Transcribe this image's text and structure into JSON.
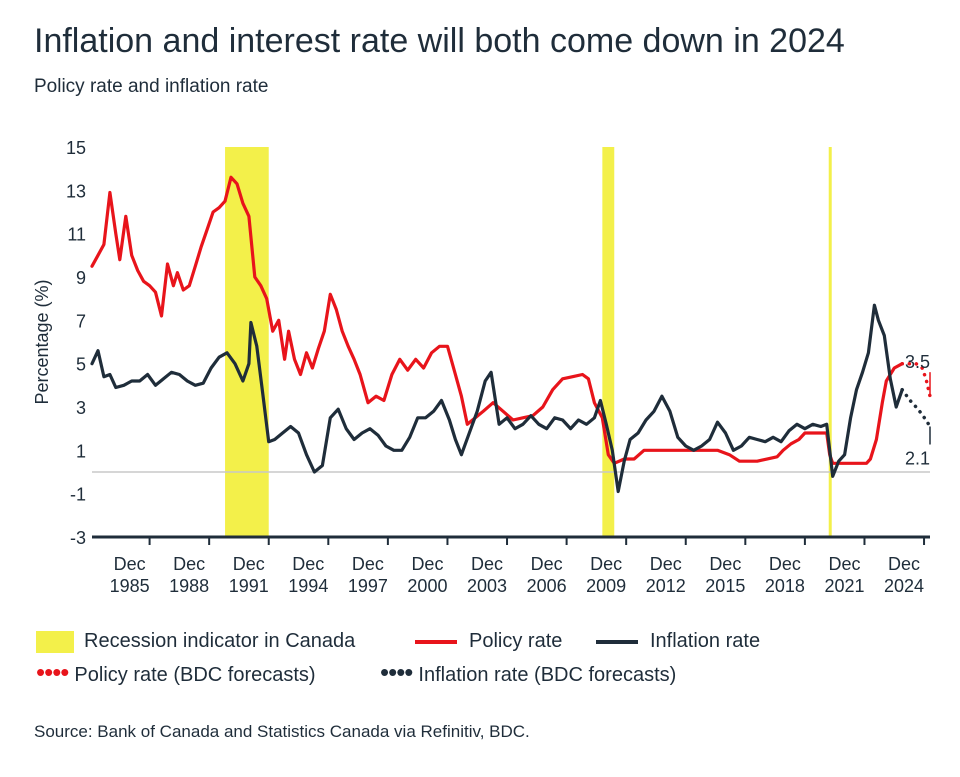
{
  "title": "Inflation and interest rate will both come down in 2024",
  "subtitle": "Policy rate and inflation rate",
  "source": "Source: Bank of Canada and Statistics Canada via Refinitiv, BDC.",
  "colors": {
    "policy": "#e8141b",
    "inflation": "#1f2d3a",
    "recession": "#f3f04a",
    "zero": "#c8c8c8"
  },
  "legend": {
    "recession": "Recession indicator in Canada",
    "policy": "Policy rate",
    "inflation": "Inflation rate",
    "policy_forecast": "Policy rate (BDC forecasts)",
    "inflation_forecast": "Inflation rate (BDC forecasts)"
  },
  "chart_data": {
    "type": "line",
    "ylabel": "Percentage (%)",
    "ylim": [
      -3,
      15
    ],
    "yticks": [
      -3,
      -1,
      1,
      3,
      5,
      7,
      9,
      11,
      13,
      15
    ],
    "xlim": [
      1983.0,
      2025.2
    ],
    "xticks": [
      {
        "line1": "Dec",
        "line2": "1985",
        "x": 1985.9
      },
      {
        "line1": "Dec",
        "line2": "1988",
        "x": 1988.9
      },
      {
        "line1": "Dec",
        "line2": "1991",
        "x": 1991.9
      },
      {
        "line1": "Dec",
        "line2": "1994",
        "x": 1994.9
      },
      {
        "line1": "Dec",
        "line2": "1997",
        "x": 1997.9
      },
      {
        "line1": "Dec",
        "line2": "2000",
        "x": 2000.9
      },
      {
        "line1": "Dec",
        "line2": "2003",
        "x": 2003.9
      },
      {
        "line1": "Dec",
        "line2": "2006",
        "x": 2006.9
      },
      {
        "line1": "Dec",
        "line2": "2009",
        "x": 2009.9
      },
      {
        "line1": "Dec",
        "line2": "2012",
        "x": 2012.9
      },
      {
        "line1": "Dec",
        "line2": "2015",
        "x": 2015.9
      },
      {
        "line1": "Dec",
        "line2": "2018",
        "x": 2018.9
      },
      {
        "line1": "Dec",
        "line2": "2021",
        "x": 2021.9
      },
      {
        "line1": "Dec",
        "line2": "2024",
        "x": 2024.9
      }
    ],
    "recessions": [
      [
        1989.7,
        1991.9
      ],
      [
        2008.7,
        2009.3
      ],
      [
        2020.1,
        2020.25
      ]
    ],
    "series": [
      {
        "name": "Policy rate",
        "x": [
          1983.0,
          1983.3,
          1983.6,
          1983.9,
          1984.2,
          1984.4,
          1984.7,
          1985.0,
          1985.3,
          1985.6,
          1985.9,
          1986.2,
          1986.5,
          1986.8,
          1987.1,
          1987.3,
          1987.6,
          1987.9,
          1988.2,
          1988.5,
          1988.8,
          1989.1,
          1989.4,
          1989.7,
          1990.0,
          1990.3,
          1990.6,
          1990.9,
          1991.2,
          1991.5,
          1991.8,
          1992.1,
          1992.4,
          1992.7,
          1992.9,
          1993.2,
          1993.5,
          1993.8,
          1994.1,
          1994.4,
          1994.7,
          1995.0,
          1995.3,
          1995.6,
          1995.9,
          1996.2,
          1996.5,
          1996.9,
          1997.3,
          1997.7,
          1998.1,
          1998.5,
          1998.9,
          1999.3,
          1999.7,
          2000.1,
          2000.5,
          2000.9,
          2001.3,
          2001.6,
          2001.9,
          2002.3,
          2002.7,
          2003.2,
          2003.7,
          2004.2,
          2004.7,
          2005.2,
          2005.7,
          2006.2,
          2006.7,
          2007.2,
          2007.7,
          2008.0,
          2008.3,
          2008.7,
          2009.0,
          2009.3,
          2009.8,
          2010.3,
          2010.8,
          2011.5,
          2012.5,
          2013.5,
          2014.5,
          2015.1,
          2015.6,
          2016.5,
          2017.5,
          2017.8,
          2018.2,
          2018.6,
          2018.9,
          2019.5,
          2020.0,
          2020.15,
          2020.3,
          2021.0,
          2021.5,
          2022.0,
          2022.2,
          2022.5,
          2022.8,
          2023.0,
          2023.4,
          2023.8
        ],
        "y": [
          9.5,
          10.0,
          10.5,
          12.9,
          11.0,
          9.8,
          11.8,
          10.0,
          9.3,
          8.8,
          8.6,
          8.3,
          7.2,
          9.6,
          8.6,
          9.2,
          8.4,
          8.6,
          9.5,
          10.4,
          11.2,
          12.0,
          12.2,
          12.5,
          13.6,
          13.3,
          12.4,
          11.8,
          9.0,
          8.6,
          8.0,
          6.5,
          7.0,
          5.2,
          6.5,
          5.2,
          4.5,
          5.5,
          4.8,
          5.7,
          6.5,
          8.2,
          7.5,
          6.5,
          5.8,
          5.2,
          4.5,
          3.2,
          3.5,
          3.3,
          4.5,
          5.2,
          4.7,
          5.2,
          4.8,
          5.5,
          5.8,
          5.8,
          4.5,
          3.5,
          2.2,
          2.5,
          2.8,
          3.2,
          2.8,
          2.4,
          2.5,
          2.6,
          3.0,
          3.8,
          4.3,
          4.4,
          4.5,
          4.3,
          3.2,
          2.5,
          0.8,
          0.4,
          0.6,
          0.6,
          1.0,
          1.0,
          1.0,
          1.0,
          1.0,
          0.8,
          0.5,
          0.5,
          0.7,
          1.0,
          1.3,
          1.5,
          1.8,
          1.8,
          1.8,
          0.8,
          0.4,
          0.4,
          0.4,
          0.4,
          0.6,
          1.5,
          3.2,
          4.2,
          4.8,
          5.0
        ]
      },
      {
        "name": "Policy rate (BDC forecasts)",
        "x": [
          2023.8,
          2024.5,
          2024.8,
          2025.0,
          2025.2
        ],
        "y": [
          5.0,
          5.0,
          4.8,
          4.3,
          3.5
        ]
      },
      {
        "name": "Inflation rate",
        "x": [
          1983.0,
          1983.3,
          1983.6,
          1983.9,
          1984.2,
          1984.6,
          1985.0,
          1985.4,
          1985.8,
          1986.2,
          1986.6,
          1987.0,
          1987.4,
          1987.8,
          1988.2,
          1988.6,
          1989.0,
          1989.4,
          1989.8,
          1990.2,
          1990.6,
          1990.9,
          1991.0,
          1991.3,
          1991.6,
          1991.9,
          1992.2,
          1992.6,
          1993.0,
          1993.4,
          1993.8,
          1994.2,
          1994.6,
          1995.0,
          1995.4,
          1995.8,
          1996.2,
          1996.6,
          1997.0,
          1997.4,
          1997.8,
          1998.2,
          1998.6,
          1999.0,
          1999.4,
          1999.8,
          2000.2,
          2000.6,
          2001.0,
          2001.3,
          2001.6,
          2002.0,
          2002.4,
          2002.8,
          2003.1,
          2003.5,
          2003.9,
          2004.3,
          2004.7,
          2005.1,
          2005.5,
          2005.9,
          2006.3,
          2006.7,
          2007.1,
          2007.5,
          2007.9,
          2008.3,
          2008.6,
          2008.9,
          2009.2,
          2009.5,
          2009.8,
          2010.1,
          2010.5,
          2010.9,
          2011.3,
          2011.7,
          2012.1,
          2012.5,
          2012.9,
          2013.3,
          2013.7,
          2014.1,
          2014.5,
          2014.9,
          2015.3,
          2015.7,
          2016.1,
          2016.5,
          2016.9,
          2017.3,
          2017.7,
          2018.1,
          2018.5,
          2018.9,
          2019.3,
          2019.7,
          2020.0,
          2020.3,
          2020.6,
          2020.9,
          2021.2,
          2021.5,
          2021.8,
          2022.1,
          2022.4,
          2022.6,
          2022.9,
          2023.2,
          2023.5,
          2023.8
        ],
        "y": [
          5.0,
          5.6,
          4.4,
          4.5,
          3.9,
          4.0,
          4.2,
          4.2,
          4.5,
          4.0,
          4.3,
          4.6,
          4.5,
          4.2,
          4.0,
          4.1,
          4.8,
          5.3,
          5.5,
          5.0,
          4.2,
          5.0,
          6.9,
          5.8,
          3.6,
          1.4,
          1.5,
          1.8,
          2.1,
          1.8,
          0.8,
          0.0,
          0.3,
          2.5,
          2.9,
          2.0,
          1.5,
          1.8,
          2.0,
          1.7,
          1.2,
          1.0,
          1.0,
          1.6,
          2.5,
          2.5,
          2.8,
          3.3,
          2.4,
          1.5,
          0.8,
          1.8,
          2.8,
          4.2,
          4.6,
          2.2,
          2.5,
          2.0,
          2.2,
          2.6,
          2.2,
          2.0,
          2.5,
          2.4,
          2.0,
          2.4,
          2.2,
          2.5,
          3.3,
          2.2,
          1.0,
          -0.9,
          0.5,
          1.5,
          1.8,
          2.4,
          2.8,
          3.5,
          2.8,
          1.6,
          1.2,
          1.0,
          1.2,
          1.5,
          2.3,
          1.8,
          1.0,
          1.2,
          1.6,
          1.5,
          1.4,
          1.6,
          1.4,
          1.9,
          2.2,
          2.0,
          2.2,
          2.1,
          2.2,
          -0.2,
          0.5,
          0.8,
          2.5,
          3.8,
          4.6,
          5.5,
          7.7,
          7.0,
          6.3,
          4.3,
          3.0,
          3.8
        ]
      },
      {
        "name": "Inflation rate (BDC forecasts)",
        "x": [
          2023.8,
          2024.2,
          2024.6,
          2025.0,
          2025.2
        ],
        "y": [
          3.8,
          3.3,
          2.9,
          2.4,
          2.1
        ]
      }
    ],
    "annotations": [
      {
        "text": "3.5",
        "series": "Policy rate (BDC forecasts)"
      },
      {
        "text": "2.1",
        "series": "Inflation rate (BDC forecasts)"
      }
    ]
  }
}
